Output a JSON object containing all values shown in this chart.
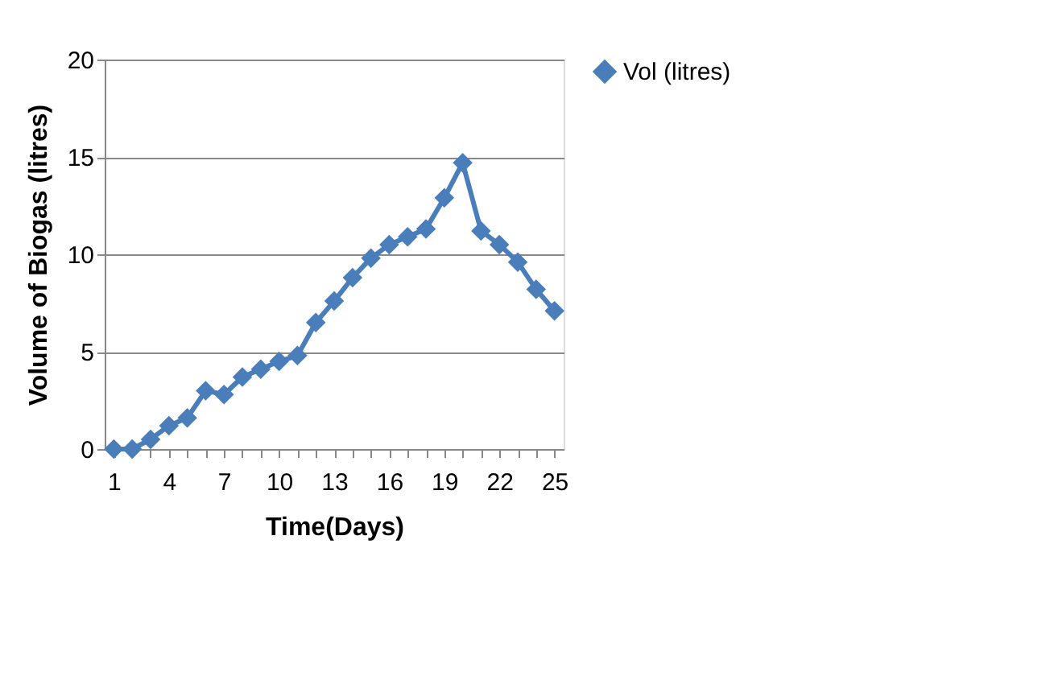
{
  "chart_data": {
    "type": "line",
    "xlabel": "Time(Days)",
    "ylabel": "Volume of Biogas (litres)",
    "categories": [
      "1",
      null,
      null,
      "4",
      null,
      null,
      "7",
      null,
      null,
      "10",
      null,
      null,
      "13",
      null,
      null,
      "16",
      null,
      null,
      "19",
      null,
      null,
      "22",
      null,
      null,
      "25"
    ],
    "series": [
      {
        "name": "Vol (litres)",
        "color": "#4a7ebb",
        "values": [
          0,
          0,
          0.5,
          1.2,
          1.6,
          3.0,
          2.8,
          3.7,
          4.1,
          4.5,
          4.8,
          6.5,
          7.6,
          8.8,
          9.8,
          10.5,
          10.9,
          11.3,
          12.9,
          14.7,
          11.2,
          10.5,
          9.6,
          8.2,
          7.1
        ]
      }
    ],
    "ylim": [
      0,
      20
    ],
    "yticks": [
      0,
      5,
      10,
      15,
      20
    ],
    "grid": "y",
    "legend": "right",
    "marker": "diamond",
    "line_style": "solid"
  }
}
